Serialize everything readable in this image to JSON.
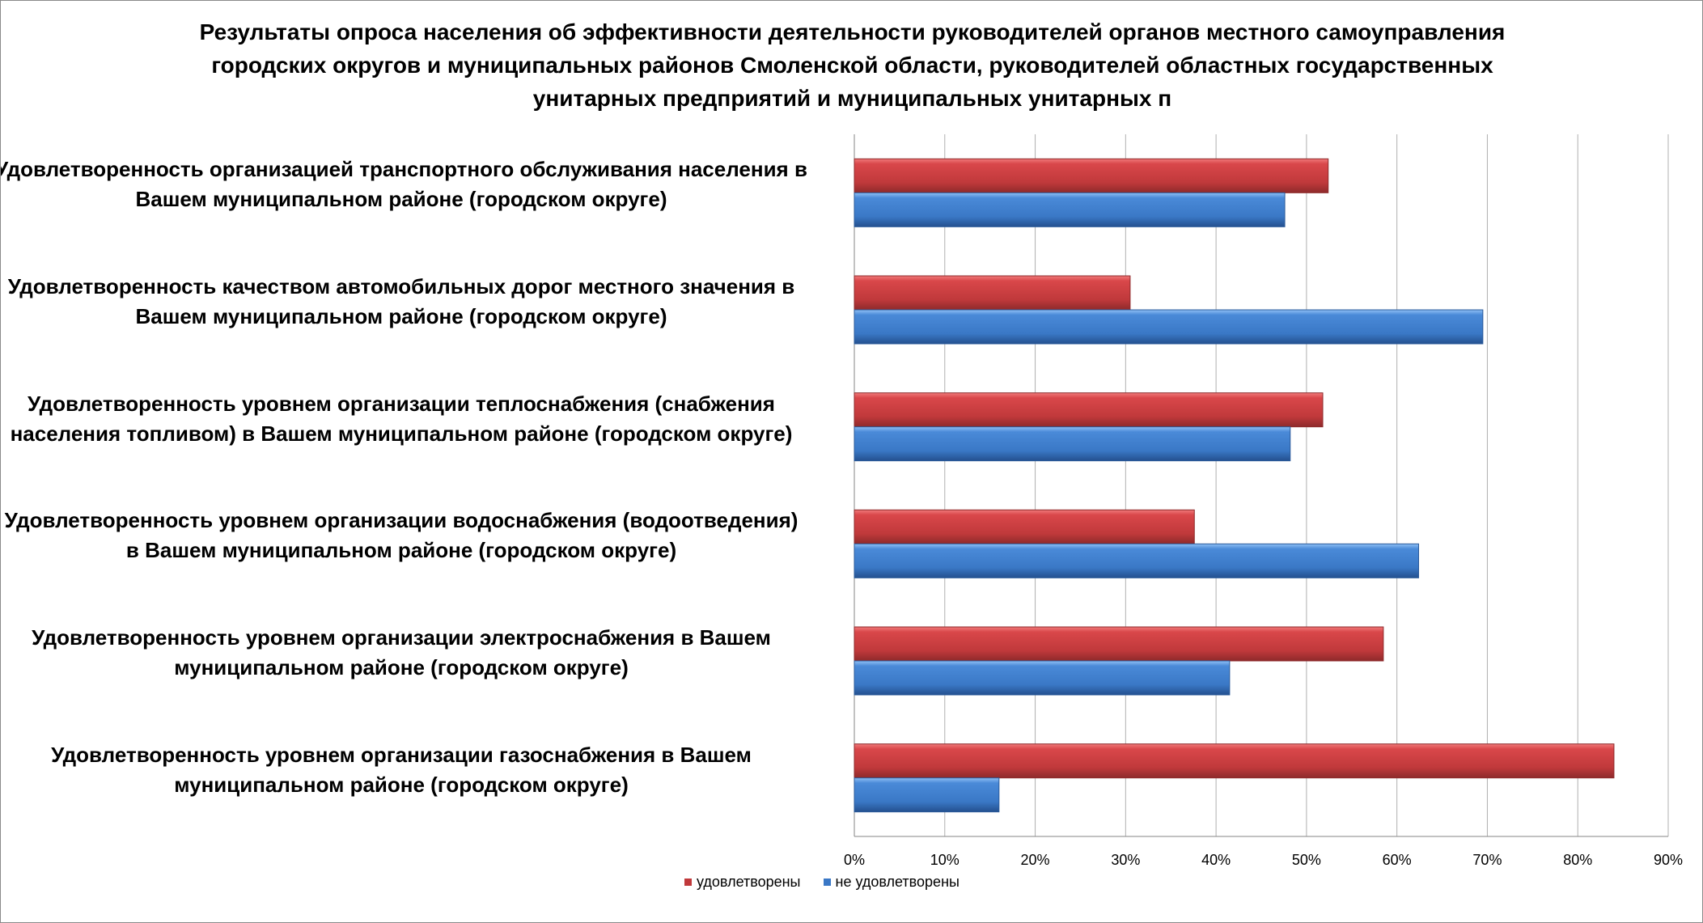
{
  "chart_data": {
    "type": "bar",
    "orientation": "horizontal",
    "title_lines": [
      "Результаты опроса населения об эффективности деятельности руководителей органов местного самоуправления",
      "городских округов и муниципальных районов Смоленской области, руководителей областных государственных",
      "унитарных предприятий и муниципальных унитарных п"
    ],
    "categories": [
      [
        "Удовлетворенность организацией транспортного обслуживания населения в",
        "Вашем муниципальном районе (городском округе)"
      ],
      [
        "Удовлетворенность качеством автомобильных дорог местного значения в",
        "Вашем муниципальном районе (городском округе)"
      ],
      [
        "Удовлетворенность уровнем организации теплоснабжения (снабжения",
        "населения топливом) в Вашем муниципальном районе (городском округе)"
      ],
      [
        "Удовлетворенность уровнем организации водоснабжения (водоотведения)",
        "в Вашем муниципальном районе (городском округе)"
      ],
      [
        "Удовлетворенность уровнем организации электроснабжения в Вашем",
        "муниципальном районе (городском округе)"
      ],
      [
        "Удовлетворенность уровнем организации газоснабжения в Вашем",
        "муниципальном районе (городском округе)"
      ]
    ],
    "series": [
      {
        "name": "удовлетворены",
        "color": "#c0393b",
        "values": [
          52.4,
          30.5,
          51.8,
          37.6,
          58.5,
          84.0
        ]
      },
      {
        "name": "не удовлетворены",
        "color": "#3a78c6",
        "values": [
          47.6,
          69.5,
          48.2,
          62.4,
          41.5,
          16.0
        ]
      }
    ],
    "xlim": [
      0,
      90
    ],
    "xticks": [
      "0%",
      "10%",
      "20%",
      "30%",
      "40%",
      "50%",
      "60%",
      "70%",
      "80%",
      "90%"
    ],
    "grid": true,
    "legend_position": "bottom",
    "xlabel": "",
    "ylabel": ""
  }
}
